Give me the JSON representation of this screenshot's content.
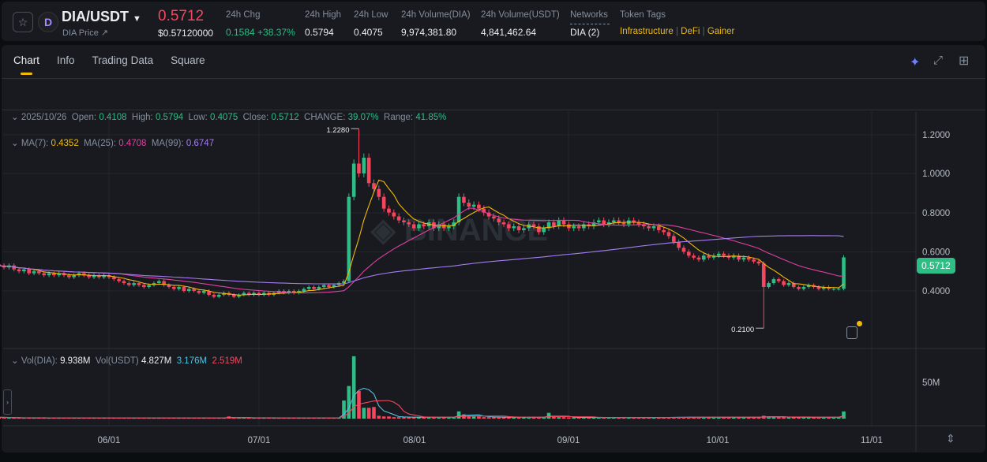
{
  "header": {
    "pair": "DIA/USDT",
    "subtitle": "DIA Price",
    "price": "0.5712",
    "price_usd": "$0.57120000",
    "stats": [
      {
        "label": "24h Chg",
        "value": "0.1584 +38.37%",
        "color": "#2ebd85"
      },
      {
        "label": "24h High",
        "value": "0.5794"
      },
      {
        "label": "24h Low",
        "value": "0.4075"
      },
      {
        "label": "24h Volume(DIA)",
        "value": "9,974,381.80"
      },
      {
        "label": "24h Volume(USDT)",
        "value": "4,841,462.64"
      },
      {
        "label": "Networks",
        "value": "DIA (2)"
      }
    ],
    "token_tags_label": "Token Tags",
    "tags": [
      "Infrastructure",
      "DeFi",
      "Gainer"
    ]
  },
  "tabs": [
    {
      "label": "Chart",
      "active": true
    },
    {
      "label": "Info"
    },
    {
      "label": "Trading Data"
    },
    {
      "label": "Square"
    }
  ],
  "toolbar_icons": [
    "ai-sparkle-icon",
    "expand-icon",
    "layout-grid-icon"
  ],
  "ohlc": {
    "date": "2025/10/26",
    "open_l": "Open:",
    "open": "0.4108",
    "high_l": "High:",
    "high": "0.5794",
    "low_l": "Low:",
    "low": "0.4075",
    "close_l": "Close:",
    "close": "0.5712",
    "change_l": "CHANGE:",
    "change": "39.07%",
    "range_l": "Range:",
    "range": "41.85%"
  },
  "ma": {
    "ma7_l": "MA(7):",
    "ma7": "0.4352",
    "ma25_l": "MA(25):",
    "ma25": "0.4708",
    "ma99_l": "MA(99):",
    "ma99": "0.6747"
  },
  "vol": {
    "dia_l": "Vol(DIA):",
    "dia": "9.938M",
    "usdt_l": "Vol(USDT)",
    "usdt": "4.827M",
    "ma1": "3.176M",
    "ma2": "2.519M"
  },
  "colors": {
    "up": "#2ebd85",
    "down": "#f6465d",
    "ma7": "#f0b90b",
    "ma25": "#e040a0",
    "ma99": "#a77df2",
    "vma1": "#4fc3e0",
    "vma2": "#f6465d",
    "accent": "#f0b90b"
  },
  "chart_data": {
    "type": "candlestick",
    "start_date": "2025-05-10",
    "y_ticks": [
      "1.2000",
      "1.0000",
      "0.8000",
      "0.6000",
      "0.4000"
    ],
    "vol_ticks": [
      "50M"
    ],
    "x_ticks": [
      "06/01",
      "07/01",
      "08/01",
      "09/01",
      "10/01",
      "11/01"
    ],
    "last_price": "0.5712",
    "annotations": [
      {
        "date": "2025-07-21",
        "price": 1.228,
        "label": "1.2280"
      },
      {
        "date": "2025-10-10",
        "price": 0.21,
        "label": "0.2100"
      }
    ],
    "close": [
      0.53,
      0.52,
      0.53,
      0.51,
      0.5,
      0.51,
      0.49,
      0.5,
      0.49,
      0.48,
      0.49,
      0.48,
      0.49,
      0.48,
      0.47,
      0.48,
      0.49,
      0.48,
      0.47,
      0.48,
      0.47,
      0.48,
      0.47,
      0.46,
      0.45,
      0.44,
      0.43,
      0.44,
      0.43,
      0.42,
      0.43,
      0.44,
      0.45,
      0.43,
      0.42,
      0.41,
      0.42,
      0.4,
      0.41,
      0.4,
      0.39,
      0.4,
      0.38,
      0.37,
      0.38,
      0.39,
      0.38,
      0.37,
      0.38,
      0.39,
      0.38,
      0.39,
      0.38,
      0.39,
      0.38,
      0.39,
      0.4,
      0.39,
      0.4,
      0.39,
      0.4,
      0.41,
      0.42,
      0.41,
      0.42,
      0.43,
      0.42,
      0.43,
      0.44,
      0.45,
      0.88,
      1.05,
      1.0,
      1.08,
      0.95,
      0.92,
      0.88,
      0.82,
      0.8,
      0.78,
      0.76,
      0.75,
      0.74,
      0.72,
      0.74,
      0.73,
      0.75,
      0.72,
      0.74,
      0.72,
      0.73,
      0.75,
      0.88,
      0.85,
      0.83,
      0.84,
      0.82,
      0.8,
      0.78,
      0.77,
      0.75,
      0.74,
      0.72,
      0.73,
      0.71,
      0.72,
      0.74,
      0.73,
      0.7,
      0.72,
      0.75,
      0.73,
      0.76,
      0.74,
      0.72,
      0.73,
      0.72,
      0.74,
      0.73,
      0.75,
      0.76,
      0.74,
      0.75,
      0.76,
      0.75,
      0.74,
      0.76,
      0.75,
      0.74,
      0.73,
      0.72,
      0.73,
      0.71,
      0.7,
      0.68,
      0.65,
      0.62,
      0.6,
      0.58,
      0.57,
      0.56,
      0.58,
      0.57,
      0.58,
      0.59,
      0.58,
      0.57,
      0.58,
      0.56,
      0.57,
      0.56,
      0.55,
      0.54,
      0.42,
      0.44,
      0.46,
      0.45,
      0.43,
      0.44,
      0.42,
      0.41,
      0.42,
      0.43,
      0.42,
      0.41,
      0.42,
      0.41,
      0.41,
      0.4108,
      0.5712
    ],
    "volume_m": [
      2,
      1.5,
      1,
      1,
      1,
      1,
      1,
      1,
      1,
      1,
      1,
      1,
      1,
      1,
      1,
      1,
      1,
      1,
      1,
      1,
      1,
      1,
      1,
      1,
      1,
      1,
      1,
      1,
      1,
      1,
      1,
      1,
      1,
      1,
      1,
      1,
      1,
      1,
      1,
      1,
      1,
      1,
      1,
      1,
      1,
      1,
      3,
      1,
      1,
      1,
      1,
      1,
      1,
      1,
      1,
      1,
      1,
      1,
      1,
      1,
      1,
      1,
      1,
      1,
      1,
      1,
      1,
      1,
      1,
      25,
      45,
      86,
      38,
      15,
      15,
      16,
      4,
      3,
      3,
      2,
      2,
      2,
      2,
      2,
      2,
      2,
      2,
      2,
      2,
      2,
      2,
      2,
      10,
      6,
      4,
      3,
      3,
      2,
      2,
      2,
      2,
      2,
      2,
      2,
      2,
      2,
      2,
      2,
      2,
      2,
      8,
      3,
      2,
      2,
      1.5,
      1.5,
      1.5,
      1.5,
      1.5,
      1.5,
      1.5,
      1.5,
      1.5,
      1.5,
      1.5,
      1.5,
      1.5,
      1.5,
      1.5,
      1.5,
      1.5,
      1.5,
      1.5,
      1.5,
      2,
      2,
      2,
      2,
      2,
      2,
      2,
      2,
      2,
      2,
      2,
      2,
      2,
      2,
      2,
      2,
      2,
      2,
      2,
      4,
      3,
      2,
      2,
      2,
      2,
      2,
      2,
      2,
      2,
      2,
      2,
      2,
      2,
      2,
      2,
      9.9
    ]
  }
}
